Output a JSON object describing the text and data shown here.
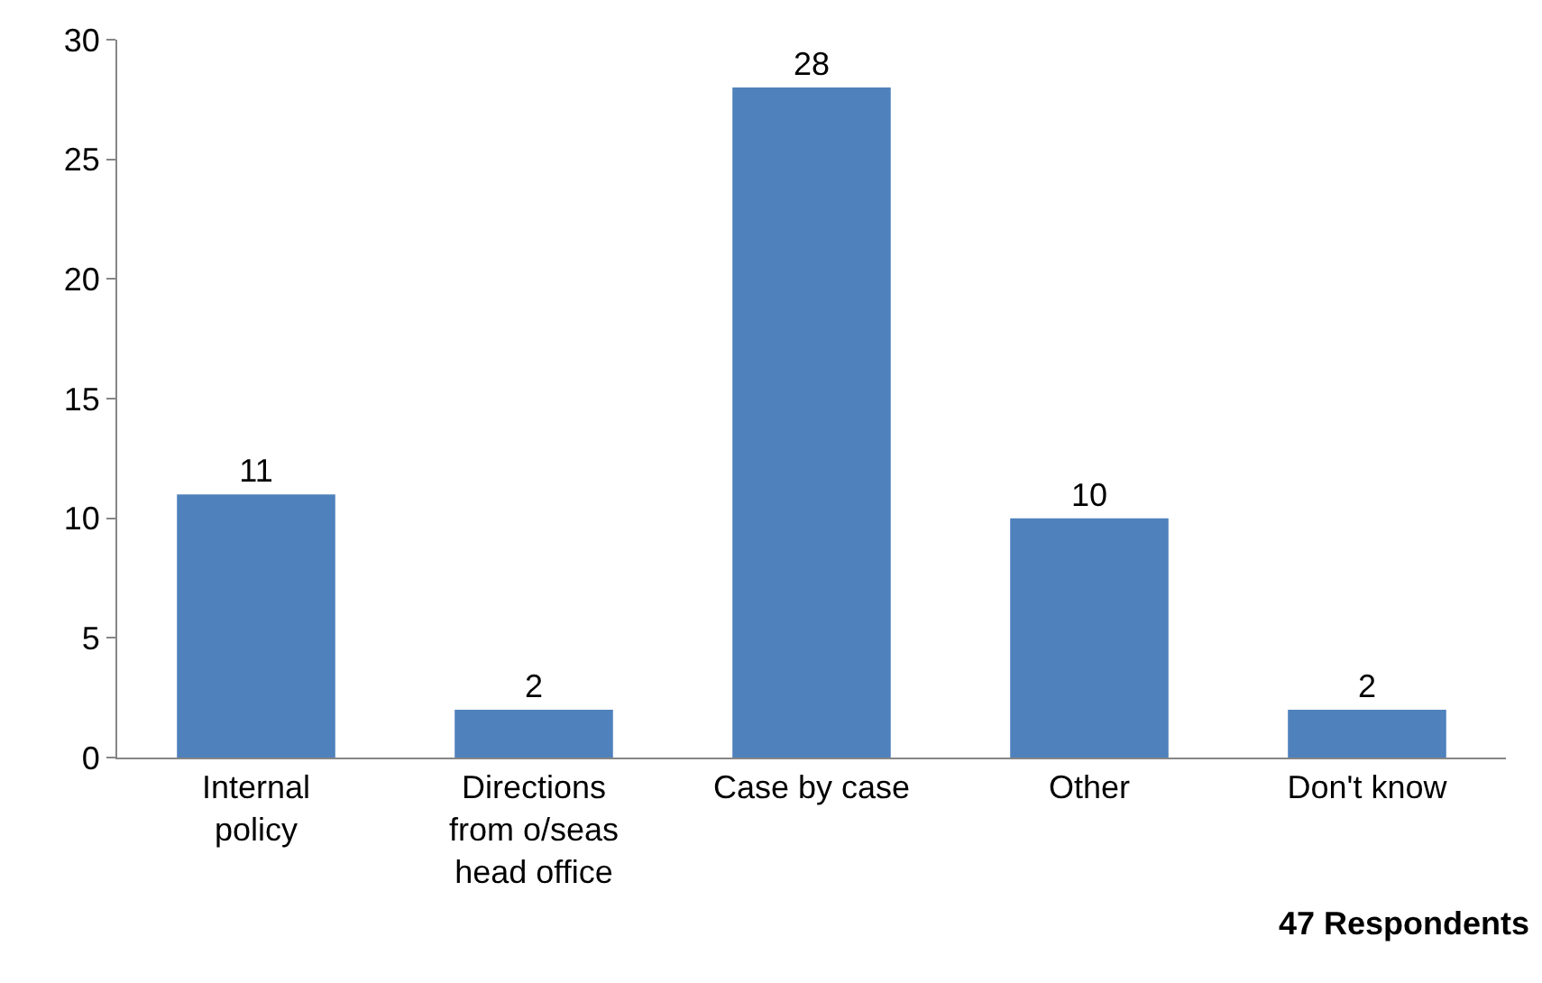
{
  "chart_data": {
    "type": "bar",
    "categories": [
      "Internal\npolicy",
      "Directions\nfrom o/seas\nhead office",
      "Case by case",
      "Other",
      "Don't know"
    ],
    "values": [
      11,
      2,
      28,
      10,
      2
    ],
    "color": "#4f81bd",
    "ylim": [
      0,
      30
    ],
    "yticks": [
      0,
      5,
      10,
      15,
      20,
      25,
      30
    ],
    "data_labels": true,
    "annotations": [
      "47 Respondents"
    ]
  }
}
